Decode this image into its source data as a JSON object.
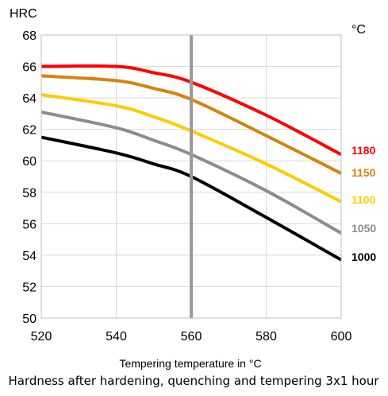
{
  "chart_data": {
    "type": "line",
    "title": "",
    "ylabel": "HRC",
    "legend_title": "°C",
    "xlabel": "Tempering temperature in °C",
    "caption": "Hardness after hardening, quenching and tempering  3x1 hour",
    "xlim": [
      520,
      600
    ],
    "ylim": [
      50,
      68
    ],
    "x_ticks": [
      "520",
      "540",
      "560",
      "580",
      "600"
    ],
    "y_ticks": [
      "50",
      "52",
      "54",
      "56",
      "58",
      "60",
      "62",
      "64",
      "66",
      "68"
    ],
    "grid": true,
    "marker_line_x": 560,
    "legend_placement": "right",
    "x": [
      520,
      540,
      550,
      560,
      580,
      600
    ],
    "series": [
      {
        "name": "1180",
        "color": "#ff0000",
        "values": [
          66.0,
          66.0,
          65.6,
          65.0,
          62.9,
          60.4
        ]
      },
      {
        "name": "1150",
        "color": "#d8820f",
        "values": [
          65.4,
          65.1,
          64.6,
          63.9,
          61.6,
          59.2
        ]
      },
      {
        "name": "1100",
        "color": "#ffcc00",
        "values": [
          64.2,
          63.5,
          62.8,
          61.9,
          59.8,
          57.4
        ]
      },
      {
        "name": "1050",
        "color": "#8c8c8c",
        "values": [
          63.1,
          62.1,
          61.3,
          60.4,
          58.1,
          55.4
        ]
      },
      {
        "name": "1000",
        "color": "#000000",
        "values": [
          61.5,
          60.5,
          59.8,
          59.0,
          56.4,
          53.7
        ]
      }
    ]
  }
}
